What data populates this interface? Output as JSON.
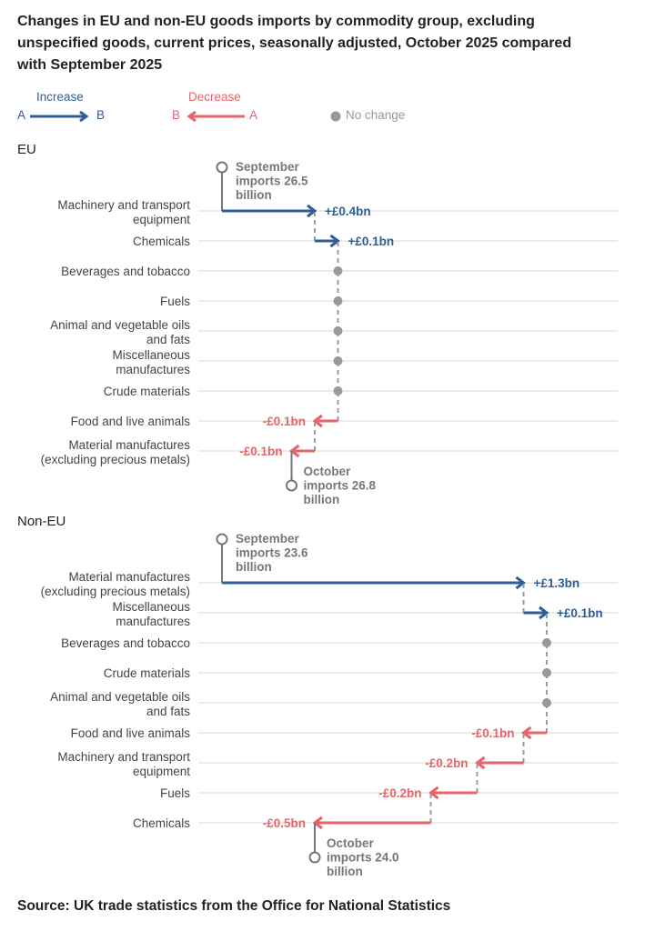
{
  "title": "Changes in EU and non-EU goods imports by commodity group, excluding unspecified goods, current prices, seasonally adjusted, October 2025 compared with September 2025",
  "legend": {
    "increase": {
      "label": "Increase",
      "from": "A",
      "to": "B",
      "color": "#2f5d95"
    },
    "decrease": {
      "label": "Decrease",
      "from": "A",
      "to": "B",
      "color": "#e9636a"
    },
    "no_change": {
      "label": "No change",
      "color": "#999999"
    }
  },
  "source": "Source: UK trade statistics from the Office for National Statistics",
  "chart_data": [
    {
      "type": "waterfall",
      "title": "EU",
      "unit": "£bn",
      "start": {
        "label": [
          "September",
          "imports 26.5",
          "billion"
        ],
        "value": 26.5
      },
      "end": {
        "label": [
          "October",
          "imports 26.8",
          "billion"
        ],
        "value": 26.8
      },
      "categories": [
        {
          "name": [
            "Machinery and transport",
            "equipment"
          ],
          "change": 0.4,
          "label": "+£0.4bn"
        },
        {
          "name": [
            "Chemicals"
          ],
          "change": 0.1,
          "label": "+£0.1bn"
        },
        {
          "name": [
            "Beverages and tobacco"
          ],
          "change": 0.0,
          "label": ""
        },
        {
          "name": [
            "Fuels"
          ],
          "change": 0.0,
          "label": ""
        },
        {
          "name": [
            "Animal and vegetable oils",
            "and fats"
          ],
          "change": 0.0,
          "label": ""
        },
        {
          "name": [
            "Miscellaneous",
            "manufactures"
          ],
          "change": 0.0,
          "label": ""
        },
        {
          "name": [
            "Crude materials"
          ],
          "change": 0.0,
          "label": ""
        },
        {
          "name": [
            "Food and live animals"
          ],
          "change": -0.1,
          "label": "-£0.1bn"
        },
        {
          "name": [
            "Material manufactures",
            "(excluding precious metals)"
          ],
          "change": -0.1,
          "label": "-£0.1bn"
        }
      ]
    },
    {
      "type": "waterfall",
      "title": "Non-EU",
      "unit": "£bn",
      "start": {
        "label": [
          "September",
          "imports 23.6",
          "billion"
        ],
        "value": 23.6
      },
      "end": {
        "label": [
          "October",
          "imports 24.0",
          "billion"
        ],
        "value": 24.0
      },
      "categories": [
        {
          "name": [
            "Material manufactures",
            "(excluding precious metals)"
          ],
          "change": 1.3,
          "label": "+£1.3bn"
        },
        {
          "name": [
            "Miscellaneous",
            "manufactures"
          ],
          "change": 0.1,
          "label": "+£0.1bn"
        },
        {
          "name": [
            "Beverages and tobacco"
          ],
          "change": 0.0,
          "label": ""
        },
        {
          "name": [
            "Crude materials"
          ],
          "change": 0.0,
          "label": ""
        },
        {
          "name": [
            "Animal and vegetable oils",
            "and fats"
          ],
          "change": 0.0,
          "label": ""
        },
        {
          "name": [
            "Food and live animals"
          ],
          "change": -0.1,
          "label": "-£0.1bn"
        },
        {
          "name": [
            "Machinery and transport",
            "equipment"
          ],
          "change": -0.2,
          "label": "-£0.2bn"
        },
        {
          "name": [
            "Fuels"
          ],
          "change": -0.2,
          "label": "-£0.2bn"
        },
        {
          "name": [
            "Chemicals"
          ],
          "change": -0.5,
          "label": "-£0.5bn"
        }
      ]
    }
  ]
}
